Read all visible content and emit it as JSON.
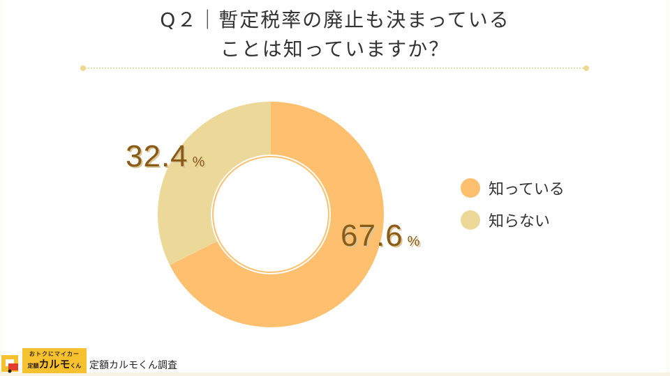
{
  "title": {
    "line1": "Q２｜暫定税率の廃止も決まっている",
    "line2": "ことは知っていますか？"
  },
  "colors": {
    "know": "#fec06e",
    "dont_know": "#ecd99a",
    "label_text": "#8a5a17",
    "divider": "#eadfae"
  },
  "chart_data": {
    "type": "pie",
    "subtype": "donut",
    "title": "Q２｜暫定税率の廃止も決まっていることは知っていますか？",
    "categories": [
      "知っている",
      "知らない"
    ],
    "values": [
      67.6,
      32.4
    ],
    "unit": "%",
    "colors": [
      "#fec06e",
      "#ecd99a"
    ],
    "legend_position": "right",
    "start_angle": "12 o'clock, clockwise"
  },
  "labels": {
    "know_value": "67.6",
    "dont_know_value": "32.4",
    "unit": "%"
  },
  "legend": [
    {
      "label": "知っている",
      "color": "#fec06e"
    },
    {
      "label": "知らない",
      "color": "#ecd99a"
    }
  ],
  "footer": {
    "logo_top": "おトクにマイカー",
    "logo_prefix": "定額",
    "logo_main": "カルモ",
    "logo_suffix": "くん",
    "credit": "定額カルモくん調査"
  }
}
